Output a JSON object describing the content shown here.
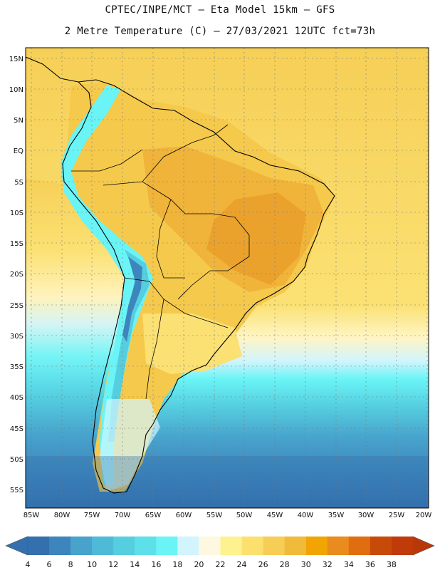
{
  "title_line1": "CPTEC/INPE/MCT –  Eta Model 15km – GFS",
  "title_line2": "2 Metre Temperature (C) – 27/03/2021 12UTC fct=73h",
  "map": {
    "lat_labels": [
      "15N",
      "10N",
      "5N",
      "EQ",
      "5S",
      "10S",
      "15S",
      "20S",
      "25S",
      "30S",
      "35S",
      "40S",
      "45S",
      "50S",
      "55S"
    ],
    "lon_labels": [
      "85W",
      "80W",
      "75W",
      "70W",
      "65W",
      "60W",
      "55W",
      "50W",
      "45W",
      "40W",
      "35W",
      "30W",
      "25W",
      "20W"
    ]
  },
  "colorbar": {
    "labels": [
      "4",
      "6",
      "8",
      "10",
      "12",
      "14",
      "16",
      "18",
      "20",
      "22",
      "24",
      "26",
      "28",
      "30",
      "32",
      "34",
      "36",
      "38"
    ],
    "colors": [
      "#3370ad",
      "#3d86bd",
      "#47a2cc",
      "#4fbad8",
      "#55cee0",
      "#5ee0ea",
      "#6af4f6",
      "#d2f5fd",
      "#fff8e0",
      "#fef290",
      "#fbe06e",
      "#f6cd55",
      "#f0bb3a",
      "#f2a402",
      "#e98c1d",
      "#e06e10",
      "#c84a08",
      "#c03a0a"
    ]
  }
}
